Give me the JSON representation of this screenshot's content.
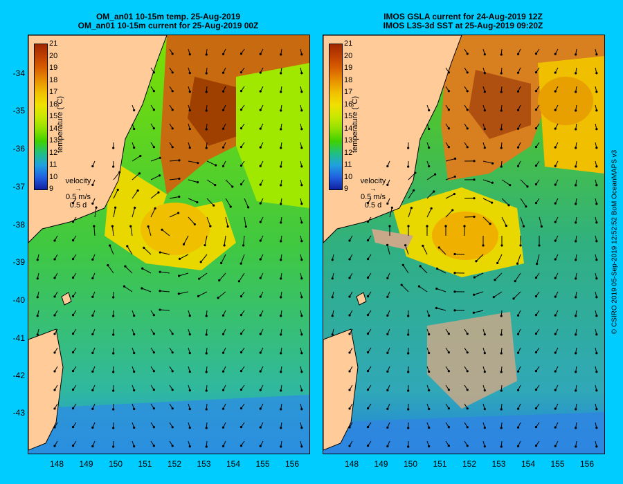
{
  "panels": [
    {
      "title_line1": "OM_an01 10-15m temp. 25-Aug-2019",
      "title_line2": "OM_an01 10-15m current for 25-Aug-2019 00Z"
    },
    {
      "title_line1": "IMOS GSLA current for 24-Aug-2019 12Z",
      "title_line2": "IMOS L3S-3d SST at 25-Aug-2019 09:20Z"
    }
  ],
  "y_ticks": [
    "-34",
    "-35",
    "-36",
    "-37",
    "-38",
    "-39",
    "-40",
    "-41",
    "-42",
    "-43"
  ],
  "x_ticks": [
    "148",
    "149",
    "150",
    "151",
    "152",
    "153",
    "154",
    "155",
    "156"
  ],
  "colorbar": {
    "labels": [
      "21",
      "20",
      "19",
      "18",
      "17",
      "16",
      "15",
      "14",
      "13",
      "12",
      "11",
      "10",
      "9"
    ],
    "title": "temperature (°C)",
    "colors": [
      "#A02800",
      "#C04000",
      "#D86000",
      "#E89000",
      "#F0C000",
      "#F0E000",
      "#C8E800",
      "#90E000",
      "#40D000",
      "#20C080",
      "#20A0E0",
      "#2060E0",
      "#1020A0"
    ]
  },
  "velocity_legend": {
    "label": "velocity",
    "speed": "0.5 m/s",
    "duration": "0.5 d"
  },
  "credit": "© CSIRO 2019  05-Sep-2019 12:52:52 BoM OceanMAPS v3",
  "colors": {
    "background": "#00CCFF",
    "land": "#FFCC99",
    "no_data": "#C8A888"
  }
}
